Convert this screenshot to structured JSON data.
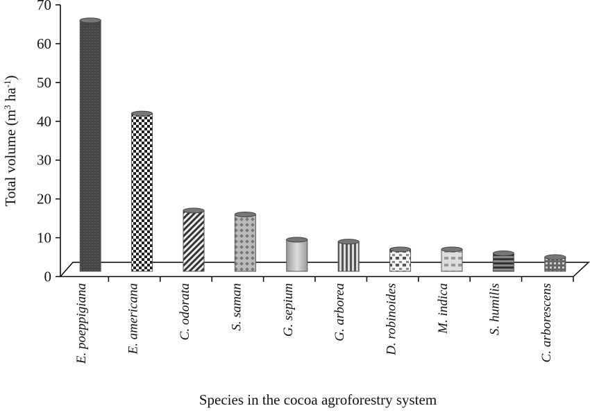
{
  "chart_data": {
    "type": "bar",
    "title": "",
    "xlabel": "Species in the cocoa agroforestry system",
    "ylabel": "Total volume (m³ ha⁻¹)",
    "ylabel_parts": {
      "main": "Total volume (m",
      "sup1": "3",
      "mid": " ha",
      "sup2": "-1",
      "end": ")"
    },
    "ylim": [
      0,
      70
    ],
    "yticks": [
      "0",
      "10",
      "20",
      "30",
      "40",
      "50",
      "60",
      "70"
    ],
    "categories": [
      "E. poeppigiana",
      "E. americana",
      "C. odorata",
      "S. saman",
      "G. sepium",
      "G. arborea",
      "D. robinoides",
      "M. indica",
      "S. humilis",
      "C. arborescens"
    ],
    "values": [
      66,
      42,
      17,
      16,
      9.5,
      9,
      7,
      7,
      6,
      5
    ],
    "style": "3d-cylinder",
    "fills": [
      "solid-dark",
      "checker",
      "diagonal",
      "diamond",
      "gradient-light",
      "vertical-stripes",
      "blocks",
      "light-blocks",
      "horizontal-bands",
      "small-checker"
    ],
    "grid": false,
    "legend": "none"
  }
}
